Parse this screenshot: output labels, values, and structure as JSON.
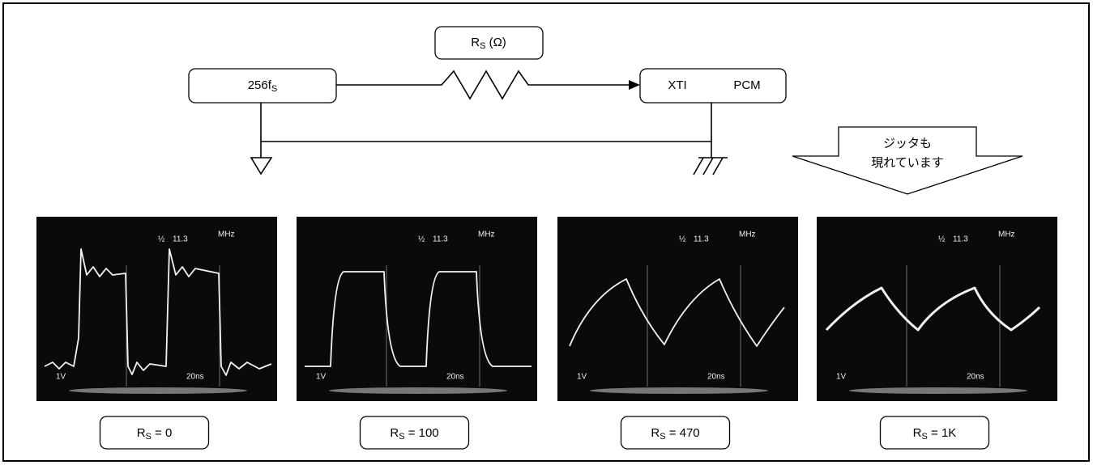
{
  "diagram": {
    "source": {
      "main": "256f",
      "sub": "S"
    },
    "resistor": {
      "main": "R",
      "sub": "S",
      "rest": " (Ω)"
    },
    "destination": {
      "pins": [
        "XTI",
        "PCM"
      ]
    },
    "callout": [
      "ジッタも",
      "現れています"
    ],
    "scopes": [
      {
        "screen": {
          "ratio": "½",
          "frequency": "11.3",
          "unit": "MHz",
          "volts": "1V",
          "time": "20ns"
        },
        "caption": {
          "main": "R",
          "sub": "S",
          "rest": " = 0"
        }
      },
      {
        "screen": {
          "ratio": "½",
          "frequency": "11.3",
          "unit": "MHz",
          "volts": "1V",
          "time": "20ns"
        },
        "caption": {
          "main": "R",
          "sub": "S",
          "rest": " = 100"
        }
      },
      {
        "screen": {
          "ratio": "½",
          "frequency": "11.3",
          "unit": "MHz",
          "volts": "1V",
          "time": "20ns"
        },
        "caption": {
          "main": "R",
          "sub": "S",
          "rest": " = 470"
        }
      },
      {
        "screen": {
          "ratio": "½",
          "frequency": "11.3",
          "unit": "MHz",
          "volts": "1V",
          "time": "20ns"
        },
        "caption": {
          "main": "R",
          "sub": "S",
          "rest": " = 1K"
        }
      }
    ]
  }
}
